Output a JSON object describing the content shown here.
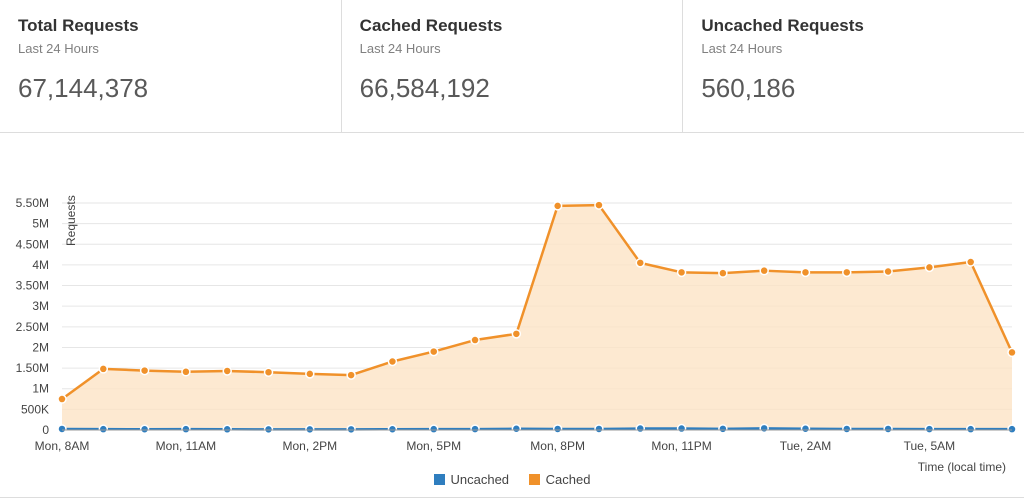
{
  "stats": [
    {
      "title": "Total Requests",
      "subtitle": "Last 24 Hours",
      "value": "67,144,378"
    },
    {
      "title": "Cached Requests",
      "subtitle": "Last 24 Hours",
      "value": "66,584,192"
    },
    {
      "title": "Uncached Requests",
      "subtitle": "Last 24 Hours",
      "value": "560,186"
    }
  ],
  "chart_data": {
    "type": "area",
    "ylabel": "Requests",
    "xlabel": "Time (local time)",
    "ylim": [
      0,
      5500000
    ],
    "y_ticks": [
      0,
      500000,
      1000000,
      1500000,
      2000000,
      2500000,
      3000000,
      3500000,
      4000000,
      4500000,
      5000000,
      5500000
    ],
    "y_tick_labels": [
      "0",
      "500K",
      "1M",
      "1.50M",
      "2M",
      "2.50M",
      "3M",
      "3.50M",
      "4M",
      "4.50M",
      "5M",
      "5.50M"
    ],
    "x_tick_labels": [
      "Mon, 8AM",
      "Mon, 11AM",
      "Mon, 2PM",
      "Mon, 5PM",
      "Mon, 8PM",
      "Mon, 11PM",
      "Tue, 2AM",
      "Tue, 5AM"
    ],
    "x_tick_index": [
      0,
      3,
      6,
      9,
      12,
      15,
      18,
      21
    ],
    "grid": true,
    "legend_placement": "bottom-center",
    "series": [
      {
        "name": "Uncached",
        "color": "#2f7ebf",
        "values": [
          25000,
          20000,
          18000,
          20000,
          17000,
          15000,
          15000,
          16000,
          18000,
          20000,
          22000,
          30000,
          25000,
          25000,
          35000,
          35000,
          28000,
          40000,
          30000,
          25000,
          25000,
          22000,
          20000,
          20000
        ]
      },
      {
        "name": "Cached",
        "color": "#f0912a",
        "values": [
          750000,
          1480000,
          1440000,
          1410000,
          1430000,
          1400000,
          1360000,
          1330000,
          1660000,
          1900000,
          2180000,
          2330000,
          5430000,
          5450000,
          4050000,
          3820000,
          3800000,
          3860000,
          3820000,
          3820000,
          3840000,
          3940000,
          4070000,
          1880000
        ]
      }
    ]
  }
}
